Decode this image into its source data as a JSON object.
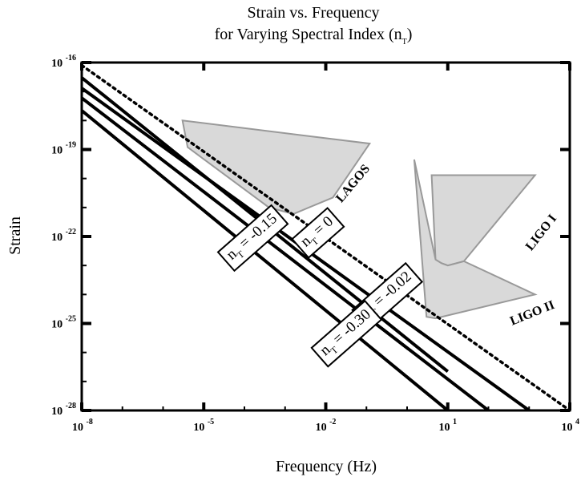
{
  "chart_data": {
    "type": "line",
    "title_line1": "Strain vs. Frequency",
    "title_line2_prefix": "for Varying Spectral Index (n",
    "title_line2_sub": "T",
    "title_line2_suffix": ")",
    "xlabel": "Frequency (Hz)",
    "ylabel": "Strain",
    "x_scale": "log",
    "y_scale": "log",
    "xlim": [
      1e-08,
      10000.0
    ],
    "ylim": [
      1e-28,
      1e-16
    ],
    "x_ticks": [
      {
        "base": "10",
        "exp": "-8",
        "log": -8
      },
      {
        "base": "10",
        "exp": "-5",
        "log": -5
      },
      {
        "base": "10",
        "exp": "-2",
        "log": -2
      },
      {
        "base": "10",
        "exp": "1",
        "log": 1
      },
      {
        "base": "10",
        "exp": "4",
        "log": 4
      }
    ],
    "y_ticks": [
      {
        "base": "10",
        "exp": "-16",
        "log": -16
      },
      {
        "base": "10",
        "exp": "-19",
        "log": -19
      },
      {
        "base": "10",
        "exp": "-22",
        "log": -22
      },
      {
        "base": "10",
        "exp": "-25",
        "log": -25
      },
      {
        "base": "10",
        "exp": "-28",
        "log": -28
      }
    ],
    "grid": false,
    "series": [
      {
        "label_prefix": "n",
        "label_sub": "T",
        "label_suffix": " = 0",
        "style": "solid",
        "x": [
          1e-08,
          10.0
        ],
        "y": [
          3e-17,
          2.2e-27
        ]
      },
      {
        "label_prefix": "n",
        "label_sub": "T",
        "label_suffix": " = -0.02",
        "style": "solid",
        "x": [
          1e-08,
          1000.0
        ],
        "y": [
          1.3e-17,
          1e-28
        ]
      },
      {
        "label_prefix": "n",
        "label_sub": "T",
        "label_suffix": " = -0.15",
        "style": "solid",
        "x": [
          1e-08,
          100.0
        ],
        "y": [
          6e-18,
          1e-28
        ]
      },
      {
        "label_prefix": "n",
        "label_sub": "T",
        "label_suffix": " = -0.30",
        "style": "solid",
        "x": [
          1e-08,
          10.0
        ],
        "y": [
          2.2e-18,
          1e-28
        ]
      },
      {
        "style": "dotted",
        "x": [
          1e-08,
          10000.0
        ],
        "y": [
          8e-17,
          1e-28
        ]
      }
    ],
    "regions": [
      {
        "name": "LAGOS",
        "color": "#d9d9d9",
        "stroke": "#999999",
        "points": [
          [
            3e-06,
            1e-18
          ],
          [
            4e-06,
            1.2e-19
          ],
          [
            0.0004,
            1e-21
          ],
          [
            0.0016,
            6e-22
          ],
          [
            0.015,
            2.2e-21
          ],
          [
            0.12,
            1.6e-19
          ]
        ]
      },
      {
        "name": "LIGO I",
        "color": "#d9d9d9",
        "stroke": "#999999",
        "points": [
          [
            4.0,
            1.3e-20
          ],
          [
            1400.0,
            1.3e-20
          ],
          [
            25,
            1.4e-23
          ],
          [
            10,
            1e-23
          ],
          [
            7,
            1.2e-23
          ],
          [
            5,
            1.6e-23
          ]
        ]
      },
      {
        "name": "LIGO II",
        "color": "#d9d9d9",
        "stroke": "#999999",
        "points": [
          [
            1.5,
            4.5e-20
          ],
          [
            5,
            1.6e-23
          ],
          [
            7,
            1.2e-23
          ],
          [
            10,
            1e-23
          ],
          [
            25,
            1.4e-23
          ],
          [
            1400.0,
            1e-24
          ],
          [
            5,
            1.5e-25
          ],
          [
            3,
            1.7e-25
          ]
        ]
      }
    ],
    "line_label_positions": [
      {
        "series": 0,
        "x": 0.006,
        "y": 1.5e-22
      },
      {
        "series": 1,
        "x": 0.3,
        "y": 1e-24
      },
      {
        "series": 2,
        "x": 0.00015,
        "y": 1e-22
      },
      {
        "series": 3,
        "x": 0.03,
        "y": 5e-26
      }
    ]
  }
}
